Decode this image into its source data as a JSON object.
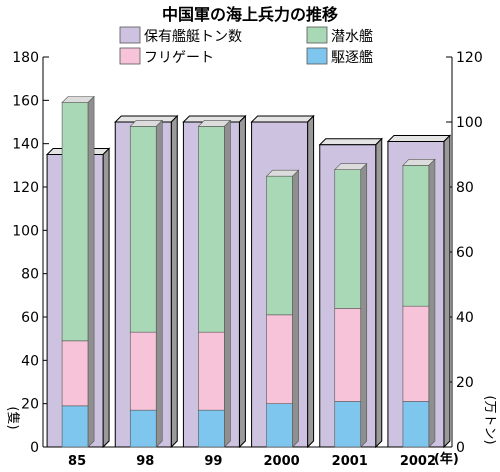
{
  "chart_data": {
    "type": "bar",
    "title": "中国軍の海上兵力の推移",
    "categories": [
      "85",
      "98",
      "99",
      "2000",
      "2001",
      "2002"
    ],
    "x_unit_label": "(年)",
    "left_axis": {
      "unit_label": "(隻)",
      "ylim": [
        0,
        180
      ],
      "ticks": [
        0,
        20,
        40,
        60,
        80,
        100,
        120,
        140,
        160,
        180
      ]
    },
    "right_axis": {
      "unit_label": "(万トン)",
      "ylim": [
        0,
        120
      ],
      "ticks": [
        0,
        20,
        40,
        60,
        80,
        100,
        120
      ]
    },
    "series": [
      {
        "name": "保有艦艇トン数",
        "axis": "right",
        "color": "#cdc3e0",
        "values": [
          90,
          100,
          100,
          100,
          93,
          94
        ]
      },
      {
        "name": "駆逐艦",
        "axis": "left",
        "color": "#7fc6ee",
        "values": [
          19,
          17,
          17,
          20,
          21,
          21
        ]
      },
      {
        "name": "フリゲート",
        "axis": "left",
        "color": "#f7c3d8",
        "values": [
          30,
          36,
          36,
          41,
          43,
          44
        ]
      },
      {
        "name": "潜水艦",
        "axis": "left",
        "color": "#a9d8b6",
        "values": [
          110,
          95,
          95,
          64,
          64,
          65
        ]
      }
    ],
    "legend": {
      "placement": "top",
      "entries": [
        {
          "label": "保有艦艇トン数",
          "color": "#cdc3e0"
        },
        {
          "label": "潜水艦",
          "color": "#a9d8b6"
        },
        {
          "label": "フリゲート",
          "color": "#f7c3d8"
        },
        {
          "label": "駆逐艦",
          "color": "#7fc6ee"
        }
      ]
    },
    "grid": false
  }
}
